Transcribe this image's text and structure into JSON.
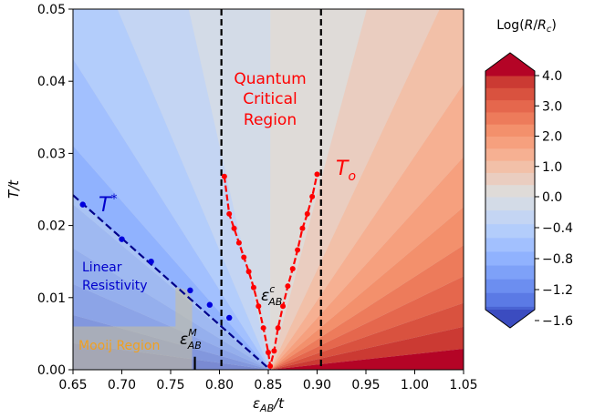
{
  "chart_data": {
    "type": "contour",
    "x_label": "ε_AB/t",
    "y_label": "T/t",
    "xlim": [
      0.65,
      1.05
    ],
    "ylim": [
      0.0,
      0.05
    ],
    "x_ticks": [
      "0.65",
      "0.70",
      "0.75",
      "0.80",
      "0.85",
      "0.90",
      "0.95",
      "1.00",
      "1.05"
    ],
    "y_ticks": [
      "0.00",
      "0.01",
      "0.02",
      "0.03",
      "0.04",
      "0.05"
    ],
    "critical_point_x": 0.852,
    "vertical_lines_x": [
      0.802,
      0.904
    ],
    "colorbar": {
      "title": "Log(R/R_c)",
      "min": -1.6,
      "max": 4.0,
      "ticks": [
        "4.0",
        "3.0",
        "2.0",
        "1.0",
        "0.0",
        "−0.4",
        "−0.8",
        "−1.2",
        "−1.6"
      ],
      "negative_colors": [
        "#3b4cc0",
        "#4a63d3",
        "#5b7ae5",
        "#6c8ef0",
        "#7ea1f8",
        "#90b2fe",
        "#a2c0fe",
        "#b3cdfb",
        "#c4d5f3",
        "#d3dbe7"
      ],
      "positive_colors": [
        "#dfdbd8",
        "#eacdc0",
        "#f2c0a8",
        "#f6b092",
        "#f6a07e",
        "#f3906c",
        "#ed7b5b",
        "#e5674d",
        "#d9523f",
        "#cb3a33",
        "#b40426"
      ]
    },
    "T_star_line": {
      "label": "T*",
      "start": [
        0.65,
        0.0242
      ],
      "end": [
        0.852,
        0.0
      ],
      "points": [
        [
          0.66,
          0.0229
        ],
        [
          0.7,
          0.0181
        ],
        [
          0.73,
          0.015
        ],
        [
          0.77,
          0.011
        ],
        [
          0.79,
          0.009
        ],
        [
          0.81,
          0.0072
        ]
      ]
    },
    "T_o_curve": {
      "label": "T_o",
      "points": [
        [
          0.805,
          0.0268
        ],
        [
          0.81,
          0.0216
        ],
        [
          0.815,
          0.0196
        ],
        [
          0.82,
          0.0176
        ],
        [
          0.825,
          0.0156
        ],
        [
          0.83,
          0.0136
        ],
        [
          0.835,
          0.0114
        ],
        [
          0.84,
          0.0088
        ],
        [
          0.845,
          0.0058
        ],
        [
          0.85,
          0.0024
        ],
        [
          0.852,
          0.0005
        ],
        [
          0.856,
          0.0026
        ],
        [
          0.86,
          0.0058
        ],
        [
          0.865,
          0.0088
        ],
        [
          0.87,
          0.0116
        ],
        [
          0.875,
          0.014
        ],
        [
          0.88,
          0.0166
        ],
        [
          0.885,
          0.0196
        ],
        [
          0.89,
          0.0216
        ],
        [
          0.895,
          0.024
        ],
        [
          0.9,
          0.0271
        ]
      ]
    },
    "mooij_x": 0.772,
    "annotations": {
      "quantum_critical_line1": "Quantum",
      "quantum_critical_line2": "Critical",
      "quantum_critical_line3": "Region",
      "t_star": "T",
      "t_star_sup": "*",
      "t_o": "T",
      "t_o_sub": "o",
      "linear_line1": "Linear",
      "linear_line2": "Resistivity",
      "mooij": "Mooij Region",
      "eps_c": "ε",
      "eps_c_sup": "c",
      "eps_c_sub": "AB",
      "eps_m": "ε",
      "eps_m_sup": "M",
      "eps_m_sub": "AB"
    }
  }
}
